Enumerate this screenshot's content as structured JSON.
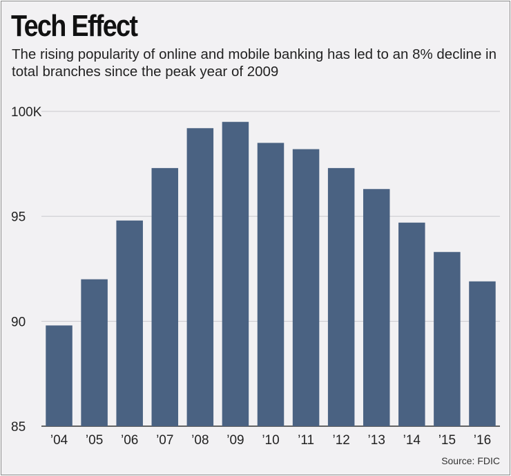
{
  "title": "Tech Effect",
  "subtitle": "The rising popularity of online and mobile banking has led to an 8% decline in total branches since the peak year of 2009",
  "source": "Source: FDIC",
  "colors": {
    "bar": "#4a6282",
    "grid": "#c9c9cd",
    "axis": "#333333",
    "background": "#f2f1f3"
  },
  "chart_data": {
    "type": "bar",
    "title": "Tech Effect",
    "xlabel": "",
    "ylabel": "",
    "categories": [
      "’04",
      "’05",
      "’06",
      "’07",
      "’08",
      "’09",
      "’10",
      "’11",
      "’12",
      "’13",
      "’14",
      "’15",
      "’16"
    ],
    "values": [
      89.8,
      92.0,
      94.8,
      97.3,
      99.2,
      99.5,
      98.5,
      98.2,
      97.3,
      96.3,
      94.7,
      93.3,
      91.9
    ],
    "ylim": [
      85,
      100
    ],
    "yticks": [
      {
        "value": 100,
        "label": "100K"
      },
      {
        "value": 95,
        "label": "95"
      },
      {
        "value": 90,
        "label": "90"
      },
      {
        "value": 85,
        "label": "85"
      }
    ],
    "grid": true,
    "legend": "none"
  }
}
